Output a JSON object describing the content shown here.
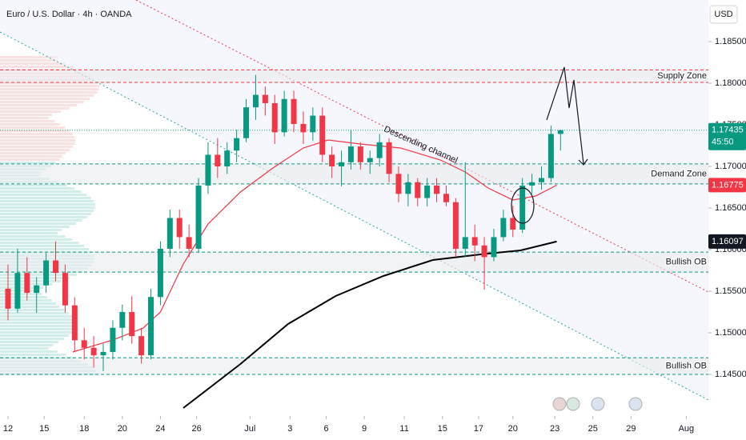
{
  "chart_data": {
    "type": "candlestick",
    "title": "Euro / U.S. Dollar · 4h · OANDA",
    "currency": "USD",
    "up_color": "#089981",
    "down_color": "#f23645",
    "x": [
      0,
      0.5,
      1,
      1.5,
      2,
      2.5,
      3,
      3.5,
      4,
      4.5,
      5,
      5.5,
      6,
      6.5,
      7,
      7.5,
      8,
      8.5,
      9,
      9.5,
      10,
      10.5,
      11,
      11.5,
      12,
      12.5,
      13,
      13.5,
      14,
      14.5,
      15,
      15.5,
      16,
      16.5,
      17,
      17.5,
      18,
      18.5,
      19,
      19.5,
      20,
      20.5,
      21,
      21.5,
      22,
      22.5,
      23,
      23.5,
      24,
      24.5,
      25,
      25.5,
      26,
      26.5,
      27,
      27.5,
      28,
      28.5,
      29
    ],
    "open": [
      1.1553,
      1.1529,
      1.1572,
      1.1548,
      1.1557,
      1.1587,
      1.1572,
      1.1533,
      1.1491,
      1.1482,
      1.1473,
      1.1477,
      1.1506,
      1.1525,
      1.1496,
      1.1473,
      1.1543,
      1.1601,
      1.1638,
      1.1615,
      1.1601,
      1.1677,
      1.1714,
      1.17,
      1.1719,
      1.1734,
      1.1771,
      1.1786,
      1.1776,
      1.1741,
      1.1781,
      1.1751,
      1.1741,
      1.1761,
      1.1714,
      1.17,
      1.1705,
      1.1724,
      1.1705,
      1.171,
      1.1729,
      1.1691,
      1.1667,
      1.1681,
      1.1662,
      1.1677,
      1.1667,
      1.1657,
      1.1601,
      1.1615,
      1.1605,
      1.1591,
      1.1615,
      1.1638,
      1.1624,
      1.1677,
      1.1681,
      1.1686,
      1.1739
    ],
    "high": [
      1.1582,
      1.1601,
      1.1591,
      1.1567,
      1.1596,
      1.161,
      1.1582,
      1.1543,
      1.1506,
      1.1496,
      1.1487,
      1.1515,
      1.1534,
      1.1544,
      1.1506,
      1.1553,
      1.161,
      1.1648,
      1.1648,
      1.163,
      1.1686,
      1.1729,
      1.1734,
      1.1729,
      1.1744,
      1.1781,
      1.181,
      1.1796,
      1.1786,
      1.1791,
      1.1791,
      1.1766,
      1.1771,
      1.1771,
      1.1724,
      1.1719,
      1.1744,
      1.1729,
      1.1719,
      1.1739,
      1.1734,
      1.17,
      1.1691,
      1.1686,
      1.1686,
      1.1686,
      1.1677,
      1.1662,
      1.1705,
      1.163,
      1.1615,
      1.1625,
      1.1648,
      1.1653,
      1.1686,
      1.1691,
      1.17,
      1.1749,
      1.1744
    ],
    "low": [
      1.1515,
      1.1524,
      1.1539,
      1.1524,
      1.1548,
      1.1562,
      1.1524,
      1.1477,
      1.1468,
      1.1458,
      1.1454,
      1.1468,
      1.1491,
      1.1487,
      1.1463,
      1.1468,
      1.1533,
      1.1591,
      1.1601,
      1.1591,
      1.1596,
      1.1667,
      1.1686,
      1.1691,
      1.1705,
      1.1729,
      1.1756,
      1.1761,
      1.1727,
      1.1736,
      1.1741,
      1.1727,
      1.1731,
      1.1705,
      1.1686,
      1.1676,
      1.1696,
      1.1696,
      1.1691,
      1.17,
      1.1681,
      1.1657,
      1.1652,
      1.1652,
      1.1652,
      1.1657,
      1.1652,
      1.1591,
      1.1591,
      1.1586,
      1.1552,
      1.1586,
      1.161,
      1.1615,
      1.162,
      1.1667,
      1.1672,
      1.1681,
      1.1719
    ],
    "close": [
      1.1529,
      1.1572,
      1.1548,
      1.1557,
      1.1587,
      1.1572,
      1.1533,
      1.1491,
      1.1482,
      1.1473,
      1.1477,
      1.1506,
      1.1525,
      1.1496,
      1.1473,
      1.1543,
      1.1601,
      1.1638,
      1.1615,
      1.1601,
      1.1677,
      1.1714,
      1.17,
      1.1719,
      1.1734,
      1.1771,
      1.1786,
      1.1776,
      1.1741,
      1.1781,
      1.1751,
      1.1741,
      1.1761,
      1.1714,
      1.17,
      1.1705,
      1.1724,
      1.1705,
      1.171,
      1.1729,
      1.1691,
      1.1667,
      1.1681,
      1.1662,
      1.1677,
      1.1667,
      1.1657,
      1.1601,
      1.1615,
      1.1605,
      1.1591,
      1.1615,
      1.1638,
      1.1624,
      1.1677,
      1.1681,
      1.1686,
      1.1739,
      1.17435
    ],
    "lines": [
      {
        "color": "#f23645",
        "x": [
          3.4,
          5.5,
          7.1,
          8.0,
          9.2,
          10.5,
          12.2,
          13.9,
          15.5,
          16.8,
          18.5,
          20.6,
          22.7,
          24.0,
          25.2,
          26.5,
          27.7,
          28.8
        ],
        "values": [
          1.14769,
          1.14913,
          1.15058,
          1.1525,
          1.15827,
          1.16308,
          1.16692,
          1.16981,
          1.17221,
          1.17317,
          1.17269,
          1.17221,
          1.17077,
          1.16933,
          1.1674,
          1.16596,
          1.16644,
          1.16775
        ]
      },
      {
        "color": "#000000",
        "x": [
          9.2,
          12.2,
          14.7,
          17.2,
          19.7,
          22.3,
          24.8,
          26.9,
          28.8
        ],
        "values": [
          1.14096,
          1.14625,
          1.15106,
          1.15442,
          1.15683,
          1.15875,
          1.15942,
          1.1599,
          1.16097
        ]
      }
    ],
    "zones": [
      {
        "label": "Supply Zone",
        "from": 1.1801,
        "to": 1.1816,
        "color": "#f23645"
      },
      {
        "label": "Demand Zone",
        "from": 1.1679,
        "to": 1.1703,
        "color": "#089981"
      },
      {
        "label": "Bullish OB",
        "from": 1.1573,
        "to": 1.1597,
        "color": "#089981"
      },
      {
        "label": "Bullish OB",
        "from": 1.145,
        "to": 1.147,
        "color": "#089981"
      }
    ],
    "annotation": "Descending channel",
    "price_labels": [
      {
        "value": 1.17435,
        "label": "1.17435",
        "color": "#089981",
        "countdown": "45:50"
      },
      {
        "value": 1.16775,
        "label": "1.16775",
        "color": "#f23645"
      },
      {
        "value": 1.16097,
        "label": "1.16097",
        "color": "#131722"
      }
    ],
    "xlim": [
      -0.42,
      36.76
    ],
    "ylim": [
      1.14,
      1.19
    ],
    "yticks": [
      {
        "value": 1.185,
        "label": "1.18500"
      },
      {
        "value": 1.18,
        "label": "1.18000"
      },
      {
        "value": 1.175,
        "label": "1.17500"
      },
      {
        "value": 1.17,
        "label": "1.17000"
      },
      {
        "value": 1.165,
        "label": "1.16500"
      },
      {
        "value": 1.16,
        "label": "1.16000"
      },
      {
        "value": 1.155,
        "label": "1.15500"
      },
      {
        "value": 1.15,
        "label": "1.15000"
      },
      {
        "value": 1.145,
        "label": "1.14500"
      }
    ],
    "xticks": [
      {
        "value": 0,
        "label": "12"
      },
      {
        "value": 1.9,
        "label": "15"
      },
      {
        "value": 4.0,
        "label": "18"
      },
      {
        "value": 6.0,
        "label": "20"
      },
      {
        "value": 8.0,
        "label": "24"
      },
      {
        "value": 9.9,
        "label": "26"
      },
      {
        "value": 12.7,
        "label": "Jul"
      },
      {
        "value": 14.8,
        "label": "3"
      },
      {
        "value": 16.7,
        "label": "6"
      },
      {
        "value": 18.7,
        "label": "9"
      },
      {
        "value": 20.8,
        "label": "11"
      },
      {
        "value": 22.8,
        "label": "15"
      },
      {
        "value": 24.7,
        "label": "17"
      },
      {
        "value": 26.5,
        "label": "20"
      },
      {
        "value": 28.7,
        "label": "23"
      },
      {
        "value": 30.7,
        "label": "25"
      },
      {
        "value": 32.7,
        "label": "29"
      },
      {
        "value": 35.6,
        "label": "Aug"
      }
    ]
  }
}
